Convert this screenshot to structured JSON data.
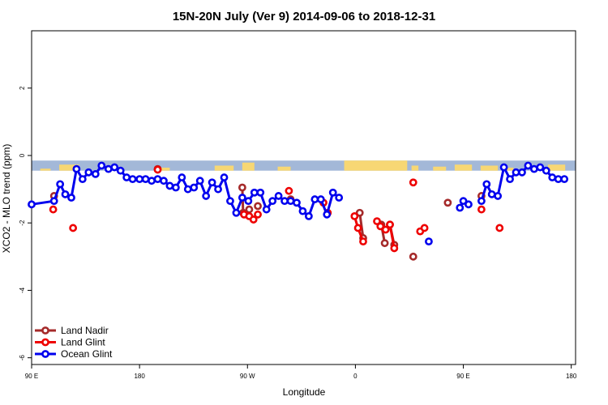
{
  "chart_data": {
    "type": "line",
    "title": "15N-20N July (Ver 9)   2014-09-06 to 2018-12-31",
    "xlabel": "Longitude",
    "ylabel": "XCO2 - MLO trend (ppm)",
    "xlim": [
      -450,
      180
    ],
    "ylim": [
      -6.2,
      3.7
    ],
    "x_ticks": [
      {
        "value": -450,
        "label": "90 E"
      },
      {
        "value": -325,
        "label": "180"
      },
      {
        "value": -200,
        "label": "90 W"
      },
      {
        "value": -75,
        "label": "0"
      },
      {
        "value": 50,
        "label": "90 E"
      },
      {
        "value": 175,
        "label": "180"
      }
    ],
    "y_ticks": [
      {
        "value": 2,
        "label": "2"
      },
      {
        "value": 0,
        "label": "0"
      },
      {
        "value": -2,
        "label": "-2"
      },
      {
        "value": -4,
        "label": "-4"
      },
      {
        "value": -6,
        "label": "-6"
      }
    ],
    "grid": false,
    "legend_position": "bottom-left",
    "map_band": {
      "ymin": -0.45,
      "ymax": -0.15,
      "ocean_color": "#a3b8d8",
      "land_color": "#f7d774"
    },
    "series": [
      {
        "name": "Land Nadir",
        "color": "#a52a2a",
        "segments": [
          [
            {
              "x": -424,
              "y": -1.2
            }
          ],
          [
            {
              "x": -304,
              "y": -0.4
            }
          ],
          [
            {
              "x": -206,
              "y": -0.95
            },
            {
              "x": -205,
              "y": -1.7
            }
          ],
          [
            {
              "x": -198,
              "y": -1.6
            }
          ],
          [
            {
              "x": -188,
              "y": -1.5
            }
          ],
          [
            {
              "x": -150,
              "y": -1.3
            }
          ],
          [
            {
              "x": -70,
              "y": -1.7
            },
            {
              "x": -66,
              "y": -2.45
            }
          ],
          [
            {
              "x": -45,
              "y": -2.05
            },
            {
              "x": -41,
              "y": -2.6
            }
          ],
          [
            {
              "x": -35,
              "y": -2.05
            },
            {
              "x": -30,
              "y": -2.65
            }
          ],
          [
            {
              "x": -8,
              "y": -3
            }
          ],
          [
            {
              "x": 32,
              "y": -1.4
            }
          ],
          [
            {
              "x": 71,
              "y": -1.2
            }
          ]
        ]
      },
      {
        "name": "Land Glint",
        "color": "#ee0000",
        "segments": [
          [
            {
              "x": -425,
              "y": -1.6
            }
          ],
          [
            {
              "x": -402,
              "y": -2.15
            }
          ],
          [
            {
              "x": -304,
              "y": -0.42
            }
          ],
          [
            {
              "x": -204,
              "y": -1.75
            },
            {
              "x": -198,
              "y": -1.8
            },
            {
              "x": -193,
              "y": -1.9
            },
            {
              "x": -188,
              "y": -1.75
            }
          ],
          [
            {
              "x": -152,
              "y": -1.05
            }
          ],
          [
            {
              "x": -112,
              "y": -1.4
            }
          ],
          [
            {
              "x": -107,
              "y": -1.7
            }
          ],
          [
            {
              "x": -76,
              "y": -1.8
            },
            {
              "x": -72,
              "y": -2.15
            },
            {
              "x": -66,
              "y": -2.55
            }
          ],
          [
            {
              "x": -50,
              "y": -1.95
            },
            {
              "x": -46,
              "y": -2.1
            },
            {
              "x": -40,
              "y": -2.2
            },
            {
              "x": -35,
              "y": -2.05
            },
            {
              "x": -30,
              "y": -2.75
            }
          ],
          [
            {
              "x": -8,
              "y": -0.8
            }
          ],
          [
            {
              "x": 0,
              "y": -2.25
            },
            {
              "x": 5,
              "y": -2.15
            }
          ],
          [
            {
              "x": 71,
              "y": -1.6
            }
          ],
          [
            {
              "x": 92,
              "y": -2.15
            }
          ]
        ]
      },
      {
        "name": "Ocean Glint",
        "color": "#0000ee",
        "segments": [
          [
            {
              "x": -450,
              "y": -1.45
            },
            {
              "x": -424,
              "y": -1.35
            },
            {
              "x": -417,
              "y": -0.85
            },
            {
              "x": -411,
              "y": -1.15
            },
            {
              "x": -404,
              "y": -1.25
            },
            {
              "x": -398,
              "y": -0.4
            },
            {
              "x": -391,
              "y": -0.7
            },
            {
              "x": -384,
              "y": -0.5
            },
            {
              "x": -376,
              "y": -0.55
            },
            {
              "x": -369,
              "y": -0.3
            },
            {
              "x": -361,
              "y": -0.4
            },
            {
              "x": -354,
              "y": -0.35
            },
            {
              "x": -347,
              "y": -0.45
            },
            {
              "x": -340,
              "y": -0.65
            },
            {
              "x": -333,
              "y": -0.7
            },
            {
              "x": -325,
              "y": -0.7
            },
            {
              "x": -318,
              "y": -0.7
            },
            {
              "x": -311,
              "y": -0.75
            },
            {
              "x": -304,
              "y": -0.7
            },
            {
              "x": -297,
              "y": -0.75
            },
            {
              "x": -290,
              "y": -0.9
            },
            {
              "x": -283,
              "y": -0.95
            },
            {
              "x": -276,
              "y": -0.65
            },
            {
              "x": -269,
              "y": -1.0
            },
            {
              "x": -262,
              "y": -0.95
            },
            {
              "x": -255,
              "y": -0.75
            },
            {
              "x": -248,
              "y": -1.2
            },
            {
              "x": -241,
              "y": -0.8
            },
            {
              "x": -234,
              "y": -1.0
            },
            {
              "x": -227,
              "y": -0.65
            },
            {
              "x": -220,
              "y": -1.35
            },
            {
              "x": -213,
              "y": -1.7
            },
            {
              "x": -206,
              "y": -1.25
            },
            {
              "x": -199,
              "y": -1.35
            },
            {
              "x": -192,
              "y": -1.1
            },
            {
              "x": -185,
              "y": -1.1
            },
            {
              "x": -178,
              "y": -1.6
            },
            {
              "x": -171,
              "y": -1.35
            },
            {
              "x": -164,
              "y": -1.2
            },
            {
              "x": -157,
              "y": -1.35
            },
            {
              "x": -150,
              "y": -1.35
            },
            {
              "x": -143,
              "y": -1.4
            },
            {
              "x": -136,
              "y": -1.65
            },
            {
              "x": -129,
              "y": -1.8
            },
            {
              "x": -122,
              "y": -1.3
            },
            {
              "x": -115,
              "y": -1.3
            },
            {
              "x": -108,
              "y": -1.75
            },
            {
              "x": -101,
              "y": -1.1
            },
            {
              "x": -94,
              "y": -1.25
            }
          ],
          [
            {
              "x": 10,
              "y": -2.55
            }
          ],
          [
            {
              "x": 46,
              "y": -1.55
            },
            {
              "x": 50,
              "y": -1.35
            },
            {
              "x": 56,
              "y": -1.45
            }
          ],
          [
            {
              "x": 71,
              "y": -1.35
            },
            {
              "x": 77,
              "y": -0.85
            },
            {
              "x": 83,
              "y": -1.15
            },
            {
              "x": 90,
              "y": -1.2
            },
            {
              "x": 97,
              "y": -0.35
            },
            {
              "x": 104,
              "y": -0.7
            },
            {
              "x": 111,
              "y": -0.5
            },
            {
              "x": 118,
              "y": -0.5
            },
            {
              "x": 125,
              "y": -0.3
            },
            {
              "x": 132,
              "y": -0.4
            },
            {
              "x": 139,
              "y": -0.35
            },
            {
              "x": 146,
              "y": -0.45
            },
            {
              "x": 153,
              "y": -0.65
            },
            {
              "x": 160,
              "y": -0.7
            },
            {
              "x": 167,
              "y": -0.7
            }
          ]
        ]
      }
    ]
  }
}
